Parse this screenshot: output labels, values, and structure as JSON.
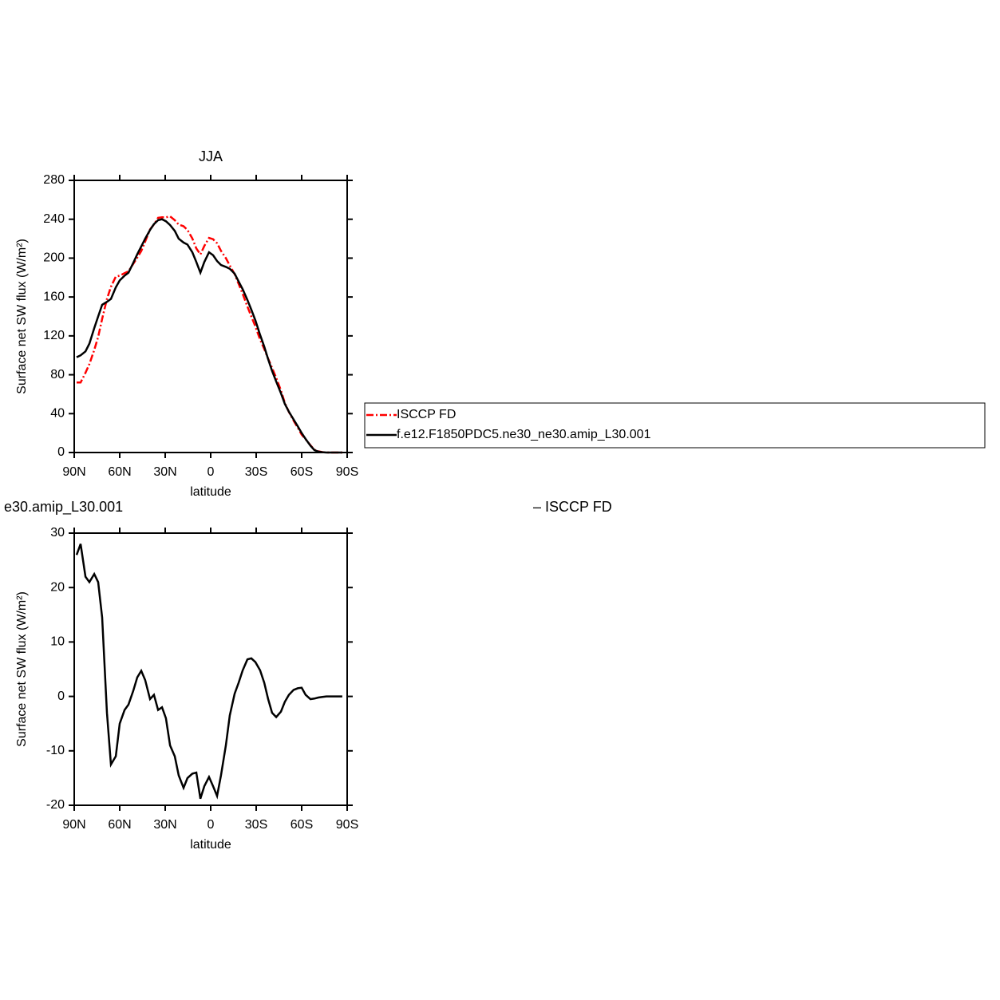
{
  "chart_data": [
    {
      "type": "line",
      "title": "JJA",
      "xlabel": "latitude",
      "ylabel": "Surface net SW flux (W/m²)",
      "x": [
        88.4,
        85.8,
        82.6,
        80,
        76.8,
        74.2,
        71.6,
        68.4,
        65.8,
        62.6,
        60,
        56.8,
        54.2,
        51.1,
        48.4,
        45.8,
        43.2,
        40,
        37.4,
        34.7,
        32.1,
        29.5,
        26.8,
        23.7,
        21.1,
        17.9,
        15.3,
        12.1,
        9.5,
        6.8,
        4.2,
        1.1,
        -1.6,
        -4.2,
        -6.8,
        -10,
        -12.6,
        -15.8,
        -18.4,
        -21.1,
        -24.2,
        -26.8,
        -29.5,
        -32.6,
        -35.3,
        -37.9,
        -40.5,
        -43.2,
        -46.3,
        -48.9,
        -51.6,
        -54.7,
        -57.4,
        -60,
        -62.6,
        -65.8,
        -68.4,
        -71,
        -73.7,
        -76.3,
        -78.9,
        -81.6,
        -84.2,
        -86.8
      ],
      "series": [
        {
          "name": "ISCCP FD",
          "color": "#ff0000",
          "line_style": "dashed",
          "values": [
            72,
            72,
            82,
            91,
            105.5,
            119,
            137.5,
            158,
            170.5,
            181,
            182,
            184.5,
            186.5,
            194,
            200.5,
            207.3,
            217,
            229.5,
            234.7,
            241.5,
            242,
            242,
            243,
            239,
            234.5,
            232.8,
            229,
            220.2,
            210,
            203.8,
            212.5,
            220.8,
            219.5,
            215.3,
            207.5,
            200,
            192.5,
            183.5,
            173.5,
            163.2,
            150.2,
            140,
            129.7,
            116.2,
            106.5,
            96.5,
            87,
            76.8,
            63.8,
            51,
            41.7,
            32.8,
            25.5,
            18.4,
            13.7,
            7.5,
            2.9,
            1.2,
            0.4,
            0,
            0,
            0,
            0,
            0
          ]
        },
        {
          "name": "f.e12.F1850PDC5.ne30_ne30.amip_L30.001",
          "color": "#000000",
          "line_style": "solid",
          "values": [
            98,
            100,
            104,
            112,
            128,
            140,
            152,
            155,
            158,
            170,
            177,
            182,
            185,
            195,
            204,
            212,
            220,
            229,
            235,
            239,
            240,
            238,
            234,
            228,
            220,
            216,
            214,
            206,
            196,
            185,
            196,
            206,
            203,
            197,
            193,
            191,
            189,
            184,
            176,
            168,
            157,
            147,
            136,
            121,
            109,
            96,
            84,
            73,
            61,
            50,
            42,
            34,
            27,
            20,
            14,
            7,
            2.5,
            1,
            0.3,
            0,
            0,
            0,
            0,
            0
          ]
        }
      ],
      "xlim": [
        90,
        -90
      ],
      "xticks": [
        {
          "value": 90,
          "label": "90N"
        },
        {
          "value": 60,
          "label": "60N"
        },
        {
          "value": 30,
          "label": "30N"
        },
        0,
        {
          "value": -30,
          "label": "30S"
        },
        {
          "value": -60,
          "label": "60S"
        },
        {
          "value": -90,
          "label": "90S"
        }
      ],
      "ylim": [
        0,
        280
      ],
      "yticks": [
        0,
        40,
        80,
        120,
        160,
        200,
        240,
        280
      ],
      "legend": "right"
    },
    {
      "type": "line",
      "left_title": "e30.amip_L30.001",
      "right_title": "– ISCCP FD",
      "xlabel": "latitude",
      "ylabel": "Surface net SW flux (W/m²)",
      "x": [
        88.4,
        85.8,
        82.6,
        80,
        76.8,
        74.2,
        71.6,
        68.4,
        65.8,
        62.6,
        60,
        56.8,
        54.2,
        51.1,
        48.4,
        45.8,
        43.2,
        40,
        37.4,
        34.7,
        32.1,
        29.5,
        26.8,
        23.7,
        21.1,
        17.9,
        15.3,
        12.1,
        9.5,
        6.8,
        4.2,
        1.1,
        -1.6,
        -4.2,
        -6.8,
        -10,
        -12.6,
        -15.8,
        -18.4,
        -21.1,
        -24.2,
        -26.8,
        -29.5,
        -32.6,
        -35.3,
        -37.9,
        -40.5,
        -43.2,
        -46.3,
        -48.9,
        -51.6,
        -54.7,
        -57.4,
        -60,
        -62.6,
        -65.8,
        -68.4,
        -71,
        -73.7,
        -76.3,
        -78.9,
        -81.6,
        -84.2,
        -86.8
      ],
      "values": [
        26,
        28,
        22,
        21,
        22.5,
        21,
        14.5,
        -3,
        -12.5,
        -11,
        -5,
        -2.5,
        -1.5,
        1,
        3.5,
        4.7,
        3,
        -0.5,
        0.3,
        -2.5,
        -2,
        -4,
        -9,
        -11,
        -14.5,
        -16.8,
        -15,
        -14.2,
        -14,
        -18.8,
        -16.5,
        -14.8,
        -16.5,
        -18.3,
        -14.5,
        -9,
        -3.5,
        0.5,
        2.5,
        4.8,
        6.8,
        7,
        6.3,
        4.8,
        2.5,
        -0.5,
        -3,
        -3.8,
        -2.8,
        -1,
        0.3,
        1.2,
        1.5,
        1.6,
        0.3,
        -0.5,
        -0.4,
        -0.2,
        -0.1,
        0,
        0,
        0,
        0,
        0
      ],
      "color": "#000000",
      "xlim": [
        90,
        -90
      ],
      "xticks": [
        {
          "value": 90,
          "label": "90N"
        },
        {
          "value": 60,
          "label": "60N"
        },
        {
          "value": 30,
          "label": "30N"
        },
        0,
        {
          "value": -30,
          "label": "30S"
        },
        {
          "value": -60,
          "label": "60S"
        },
        {
          "value": -90,
          "label": "90S"
        }
      ],
      "ylim": [
        -20,
        30
      ],
      "yticks": [
        -20,
        -10,
        0,
        10,
        20,
        30
      ]
    }
  ]
}
